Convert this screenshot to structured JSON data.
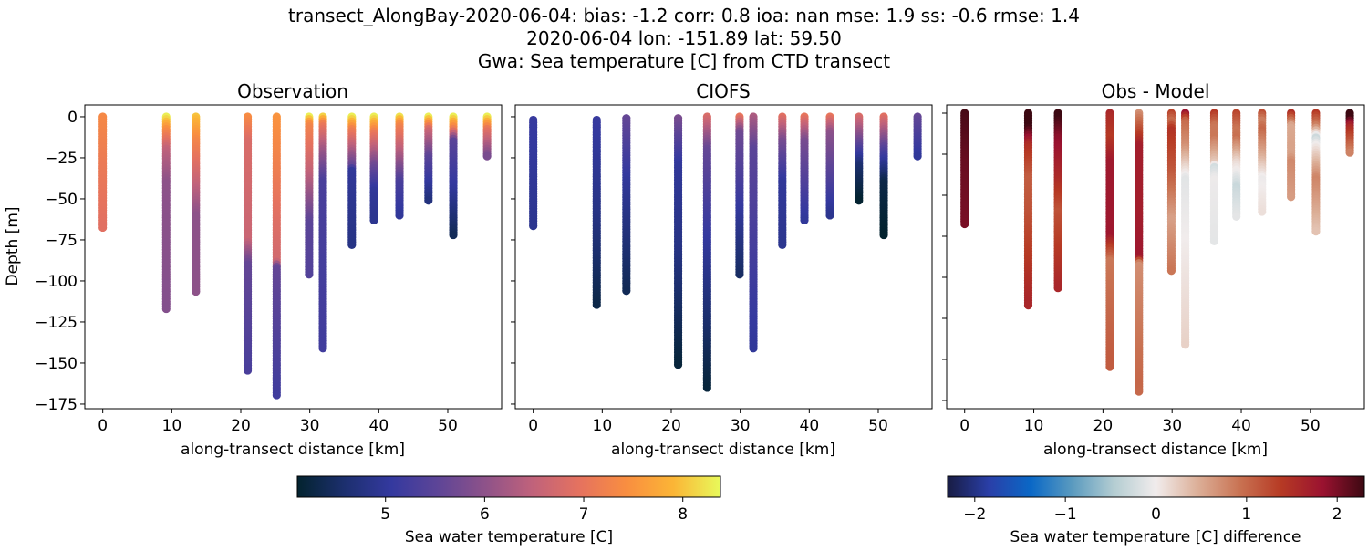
{
  "title_lines": [
    "transect_AlongBay-2020-06-04: bias: -1.2  corr: 0.8  ioa: nan  mse: 1.9  ss: -0.6  rmse: 1.4",
    "2020-06-04 lon: -151.89 lat: 59.50",
    "Gwa: Sea temperature [C] from CTD transect"
  ],
  "chart_data": [
    {
      "type": "scatter",
      "title": "Observation",
      "xlabel": "along-transect distance [km]",
      "ylabel": "Depth [m]",
      "xlim": [
        -2.6,
        57.8
      ],
      "ylim": [
        -177.8,
        7.2
      ],
      "xticks": [
        0,
        10,
        20,
        30,
        40,
        50
      ],
      "yticks": [
        0,
        -25,
        -50,
        -75,
        -100,
        -125,
        -150,
        -175
      ],
      "colormap": "thermal",
      "color_range": [
        4.11,
        8.38
      ],
      "stations": [
        {
          "x": 0,
          "profile": [
            [
              0,
              7.35
            ],
            [
              30,
              7.1
            ],
            [
              68,
              6.9
            ]
          ]
        },
        {
          "x": 9.2,
          "profile": [
            [
              0,
              8.3
            ],
            [
              8,
              7.4
            ],
            [
              20,
              6.5
            ],
            [
              40,
              6.0
            ],
            [
              118,
              5.9
            ]
          ]
        },
        {
          "x": 13.5,
          "profile": [
            [
              0,
              8.0
            ],
            [
              15,
              7.3
            ],
            [
              35,
              6.7
            ],
            [
              60,
              6.0
            ],
            [
              107,
              6.0
            ]
          ]
        },
        {
          "x": 21,
          "profile": [
            [
              0,
              7.4
            ],
            [
              15,
              6.8
            ],
            [
              75,
              6.6
            ],
            [
              90,
              5.6
            ],
            [
              155,
              5.3
            ]
          ]
        },
        {
          "x": 25.2,
          "profile": [
            [
              0,
              7.5
            ],
            [
              20,
              7.3
            ],
            [
              60,
              6.9
            ],
            [
              88,
              6.7
            ],
            [
              92,
              5.6
            ],
            [
              170,
              5.2
            ]
          ]
        },
        {
          "x": 29.9,
          "profile": [
            [
              0,
              8.3
            ],
            [
              5,
              7.3
            ],
            [
              35,
              6.5
            ],
            [
              65,
              5.5
            ],
            [
              96,
              5.4
            ]
          ]
        },
        {
          "x": 31.9,
          "profile": [
            [
              0,
              8.1
            ],
            [
              5,
              7.1
            ],
            [
              20,
              6.2
            ],
            [
              40,
              5.3
            ],
            [
              142,
              5.2
            ]
          ]
        },
        {
          "x": 36.1,
          "profile": [
            [
              0,
              8.3
            ],
            [
              8,
              7.2
            ],
            [
              30,
              5.6
            ],
            [
              33,
              5.0
            ],
            [
              79,
              4.8
            ]
          ]
        },
        {
          "x": 39.3,
          "profile": [
            [
              0,
              8.3
            ],
            [
              10,
              7.1
            ],
            [
              30,
              5.7
            ],
            [
              45,
              5.0
            ],
            [
              63,
              4.9
            ]
          ]
        },
        {
          "x": 43,
          "profile": [
            [
              0,
              8.2
            ],
            [
              5,
              7.3
            ],
            [
              25,
              6.2
            ],
            [
              40,
              5.3
            ],
            [
              60,
              5.0
            ]
          ]
        },
        {
          "x": 47.2,
          "profile": [
            [
              0,
              8.3
            ],
            [
              8,
              6.7
            ],
            [
              25,
              5.5
            ],
            [
              52,
              4.7
            ]
          ]
        },
        {
          "x": 50.8,
          "profile": [
            [
              0,
              8.3
            ],
            [
              8,
              7.1
            ],
            [
              15,
              5.5
            ],
            [
              45,
              5.0
            ],
            [
              73,
              4.4
            ]
          ]
        },
        {
          "x": 55.7,
          "profile": [
            [
              0,
              8.3
            ],
            [
              8,
              7.0
            ],
            [
              24,
              5.8
            ]
          ]
        }
      ]
    },
    {
      "type": "scatter",
      "title": "CIOFS",
      "xlabel": "along-transect distance [km]",
      "xlim": [
        -2.6,
        57.8
      ],
      "ylim": [
        -177.8,
        7.2
      ],
      "xticks": [
        0,
        10,
        20,
        30,
        40,
        50
      ],
      "yticks": [
        0,
        -25,
        -50,
        -75,
        -100,
        -125,
        -150,
        -175
      ],
      "colormap": "thermal",
      "color_range": [
        4.11,
        8.38
      ],
      "stations": [
        {
          "x": 0,
          "profile": [
            [
              2,
              5.1
            ],
            [
              67,
              4.9
            ]
          ]
        },
        {
          "x": 9.2,
          "profile": [
            [
              2,
              5.1
            ],
            [
              60,
              4.8
            ],
            [
              115,
              4.3
            ]
          ]
        },
        {
          "x": 13.5,
          "profile": [
            [
              1,
              5.6
            ],
            [
              40,
              5.0
            ],
            [
              106,
              4.4
            ]
          ]
        },
        {
          "x": 21,
          "profile": [
            [
              1,
              5.8
            ],
            [
              30,
              5.0
            ],
            [
              80,
              4.8
            ],
            [
              151,
              4.2
            ]
          ]
        },
        {
          "x": 25.2,
          "profile": [
            [
              0,
              6.8
            ],
            [
              20,
              5.6
            ],
            [
              80,
              5.0
            ],
            [
              166,
              4.2
            ]
          ]
        },
        {
          "x": 29.9,
          "profile": [
            [
              0,
              7.0
            ],
            [
              10,
              5.7
            ],
            [
              60,
              5.0
            ],
            [
              96,
              4.5
            ]
          ]
        },
        {
          "x": 31.9,
          "profile": [
            [
              0,
              6.3
            ],
            [
              20,
              5.5
            ],
            [
              141,
              5.0
            ]
          ]
        },
        {
          "x": 36.1,
          "profile": [
            [
              0,
              6.9
            ],
            [
              15,
              5.8
            ],
            [
              40,
              5.0
            ],
            [
              78,
              4.9
            ]
          ]
        },
        {
          "x": 39.3,
          "profile": [
            [
              0,
              7.0
            ],
            [
              15,
              5.8
            ],
            [
              63,
              5.0
            ]
          ]
        },
        {
          "x": 43,
          "profile": [
            [
              0,
              7.0
            ],
            [
              10,
              6.0
            ],
            [
              60,
              4.9
            ]
          ]
        },
        {
          "x": 47.2,
          "profile": [
            [
              0,
              6.8
            ],
            [
              20,
              5.3
            ],
            [
              30,
              4.6
            ],
            [
              52,
              4.1
            ]
          ]
        },
        {
          "x": 50.8,
          "profile": [
            [
              0,
              6.9
            ],
            [
              20,
              5.4
            ],
            [
              40,
              4.3
            ],
            [
              73,
              4.1
            ]
          ]
        },
        {
          "x": 55.7,
          "profile": [
            [
              0,
              5.6
            ],
            [
              24,
              5.0
            ]
          ]
        }
      ]
    },
    {
      "type": "scatter",
      "title": "Obs - Model",
      "xlabel": "along-transect distance [km]",
      "xlim": [
        -2.6,
        57.8
      ],
      "ylim": [
        -180,
        5
      ],
      "xticks": [
        0,
        10,
        20,
        30,
        40,
        50
      ],
      "yticks": [
        0,
        -25,
        -50,
        -75,
        -100,
        -125,
        -150,
        -175
      ],
      "colormap": "balance",
      "color_range": [
        -2.3,
        2.3
      ],
      "values": "observation minus CIOFS"
    }
  ],
  "colorbars": [
    {
      "label": "Sea water temperature [C]",
      "range": [
        4.11,
        8.38
      ],
      "ticks": [
        5,
        6,
        7,
        8
      ],
      "colormap": "thermal"
    },
    {
      "label": "Sea water temperature [C] difference",
      "range": [
        -2.3,
        2.3
      ],
      "ticks": [
        -2,
        -1,
        0,
        1,
        2
      ],
      "colormap": "balance"
    }
  ],
  "colormaps": {
    "thermal": [
      "#03232f",
      "#1c2f6e",
      "#34399f",
      "#5e4597",
      "#8e5289",
      "#c0627b",
      "#e5725f",
      "#f98e40",
      "#fbb536",
      "#e8fa5b"
    ],
    "balance": [
      "#181c43",
      "#2a3fa8",
      "#0a68c6",
      "#5b9bbf",
      "#b4cdd2",
      "#f1ecec",
      "#dcaf98",
      "#c97353",
      "#b63a24",
      "#9a1230",
      "#3c0912"
    ]
  }
}
